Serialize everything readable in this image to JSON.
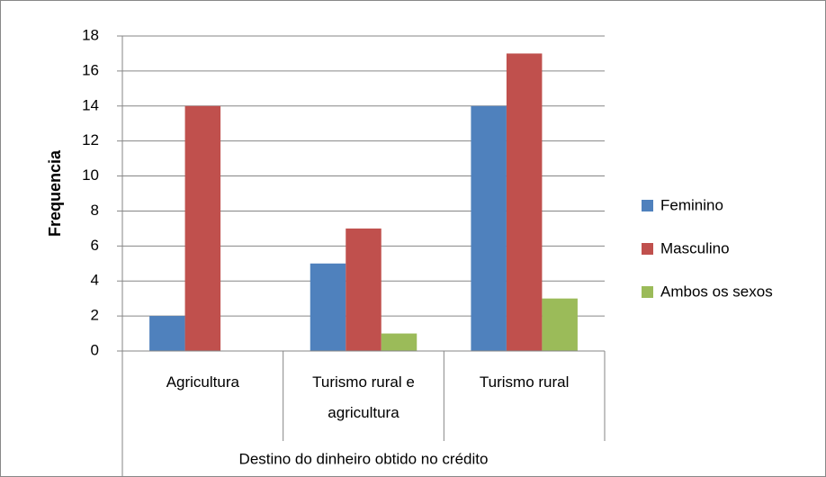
{
  "chart_data": {
    "type": "bar",
    "categories": [
      "Agricultura",
      "Turismo rural e agricultura",
      "Turismo rural"
    ],
    "series": [
      {
        "name": "Feminino",
        "color": "#4f81bd",
        "values": [
          2,
          5,
          14
        ]
      },
      {
        "name": "Masculino",
        "color": "#c0504d",
        "values": [
          14,
          7,
          17
        ]
      },
      {
        "name": "Ambos os sexos",
        "color": "#9bbb59",
        "values": [
          0,
          1,
          3
        ]
      }
    ],
    "ylabel": "Frequencia",
    "xlabel": "Destino do dinheiro obtido no crédito",
    "ylim": [
      0,
      18
    ],
    "yticks": [
      0,
      2,
      4,
      6,
      8,
      10,
      12,
      14,
      16,
      18
    ],
    "grid": true,
    "legend": "right"
  }
}
